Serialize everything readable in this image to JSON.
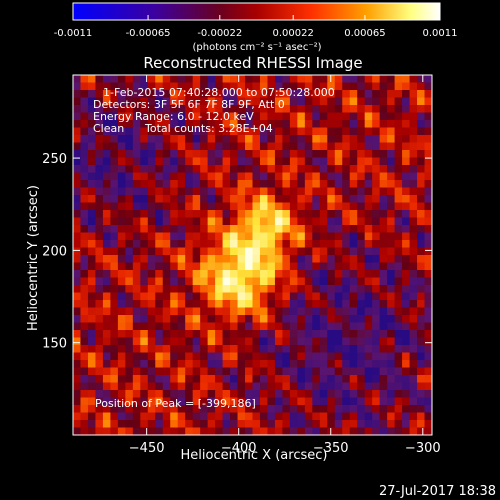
{
  "chart_data": {
    "type": "heatmap",
    "title": "Reconstructed RHESSI Image",
    "xlabel": "Heliocentric X (arcsec)",
    "ylabel": "Heliocentric Y (arcsec)",
    "xlim": [
      -490,
      -295
    ],
    "ylim": [
      100,
      295
    ],
    "x_ticks": [
      -450,
      -400,
      -350,
      -300
    ],
    "y_ticks": [
      150,
      200,
      250
    ],
    "colorbar": {
      "range": [
        -0.0011,
        0.0011
      ],
      "ticks": [
        "-0.0011",
        "-0.00065",
        "-0.00022",
        "0.00022",
        "0.00065",
        "0.0011"
      ],
      "ticks_values": [
        -0.0011,
        -0.00065,
        -0.00022,
        0.00022,
        0.00065,
        0.0011
      ],
      "unit_label": "(photons cm⁻² s⁻¹ asec⁻²)",
      "colors": [
        "#0000ff",
        "#4b0082",
        "#8a0000",
        "#ff3000",
        "#ffa000",
        "#ffffa0",
        "#ffffff"
      ]
    },
    "annotations": {
      "time_range": "1-Feb-2015 07:40:28.000 to 07:50:28.000",
      "detectors": "Detectors: 3F 5F 6F 7F 8F 9F, Att 0",
      "energy": "Energy Range: 6.0 - 12.0 keV",
      "clean": "Clean",
      "counts": "Total counts: 3.28E+04",
      "peak": "Position of Peak = [-399,186]"
    },
    "peak_position": [
      -399,
      186
    ],
    "secondary_peak": [
      -385,
      213
    ]
  },
  "footer": {
    "timestamp": "27-Jul-2017 18:38"
  }
}
